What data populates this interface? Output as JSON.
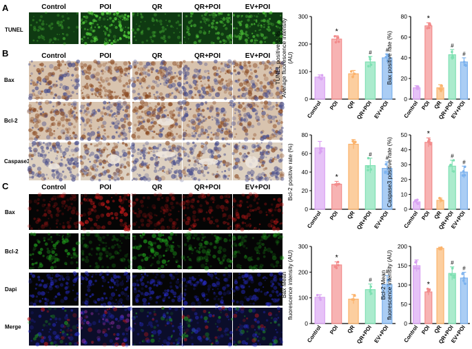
{
  "panels": {
    "A": {
      "letter": "A",
      "columns": [
        "Control",
        "POI",
        "QR",
        "QR+POI",
        "EV+POI"
      ],
      "rows": [
        "TUNEL"
      ]
    },
    "B": {
      "letter": "B",
      "columns": [
        "Control",
        "POI",
        "QR",
        "QR+POI",
        "EV+POI"
      ],
      "rows": [
        "Bax",
        "Bcl-2",
        "Caspase3"
      ]
    },
    "C": {
      "letter": "C",
      "columns": [
        "Control",
        "POI",
        "QR",
        "QR+POI",
        "EV+POI"
      ],
      "rows": [
        "Bax",
        "Bcl-2",
        "Dapi",
        "Merge"
      ]
    }
  },
  "colors": {
    "Control": "#d9a2f2",
    "POI": "#f28b8b",
    "QR": "#fbb36c",
    "QR+POI": "#7ee0b2",
    "EV+POI": "#7cb2ee",
    "tunel_bg": "#0f3a12",
    "tunel_fg": "#55d43c",
    "ihc_brown": "#8a4a22",
    "ihc_blue": "#4a4f8c",
    "ihc_pale": "#d8c3ae",
    "if_red": "#c81a1a",
    "if_green": "#22a81e",
    "if_blue": "#2a2fd0"
  },
  "chart_data": [
    {
      "type": "bar",
      "categories": [
        "Control",
        "POI",
        "QR",
        "QR+POI",
        "EV+POI"
      ],
      "values": [
        80,
        218,
        92,
        135,
        150
      ],
      "errors": [
        8,
        12,
        12,
        20,
        14
      ],
      "ylabel": "TUNEL positive cells\nAverage fluorescence intensity\n(AU)",
      "ylim": [
        0,
        300
      ],
      "yticks": [
        0,
        100,
        200,
        300
      ],
      "annotations": [
        "",
        "*",
        "",
        "#",
        "#"
      ]
    },
    {
      "type": "bar",
      "categories": [
        "Control",
        "POI",
        "QR",
        "QR+POI",
        "EV+POI"
      ],
      "values": [
        11,
        71,
        11,
        43,
        36
      ],
      "errors": [
        2,
        3,
        3,
        5,
        4
      ],
      "ylabel": "Bax positive rate (%)",
      "ylim": [
        0,
        80
      ],
      "yticks": [
        0,
        20,
        40,
        60,
        80
      ],
      "annotations": [
        "",
        "*",
        "",
        "#",
        "#"
      ]
    },
    {
      "type": "bar",
      "categories": [
        "Control",
        "POI",
        "QR",
        "QR+POI",
        "EV+POI"
      ],
      "values": [
        66,
        27,
        70,
        47,
        44
      ],
      "errors": [
        7,
        3,
        5,
        8,
        7
      ],
      "ylabel": "Bcl-2 positive rate (%)",
      "ylim": [
        0,
        80
      ],
      "yticks": [
        0,
        20,
        40,
        60,
        80
      ],
      "annotations": [
        "",
        "*",
        "",
        "#",
        "#"
      ]
    },
    {
      "type": "bar",
      "categories": [
        "Control",
        "POI",
        "QR",
        "QR+POI",
        "EV+POI"
      ],
      "values": [
        5,
        45,
        6,
        29,
        25
      ],
      "errors": [
        1.5,
        3,
        1.5,
        4,
        4
      ],
      "ylabel": "Caspase3 positive rate (%)",
      "ylim": [
        0,
        50
      ],
      "yticks": [
        0,
        10,
        20,
        30,
        40,
        50
      ],
      "annotations": [
        "",
        "*",
        "",
        "#",
        "#"
      ]
    },
    {
      "type": "bar",
      "categories": [
        "Control",
        "POI",
        "QR",
        "QR+POI",
        "EV+POI"
      ],
      "values": [
        102,
        228,
        95,
        132,
        152
      ],
      "errors": [
        10,
        12,
        18,
        22,
        35
      ],
      "ylabel": "Bax Mean\nfluorescence intensity (AU)",
      "ylim": [
        0,
        300
      ],
      "yticks": [
        0,
        100,
        200,
        300
      ],
      "annotations": [
        "",
        "*",
        "",
        "#",
        "#"
      ]
    },
    {
      "type": "bar",
      "categories": [
        "Control",
        "POI",
        "QR",
        "QR+POI",
        "EV+POI"
      ],
      "values": [
        150,
        82,
        195,
        130,
        118
      ],
      "errors": [
        15,
        8,
        3,
        17,
        15
      ],
      "ylabel": "Bcl-2 Mean\nfluorescence intensity (AU)",
      "ylim": [
        0,
        200
      ],
      "yticks": [
        0,
        50,
        100,
        150,
        200
      ],
      "annotations": [
        "",
        "*",
        "",
        "#",
        "#"
      ]
    }
  ]
}
